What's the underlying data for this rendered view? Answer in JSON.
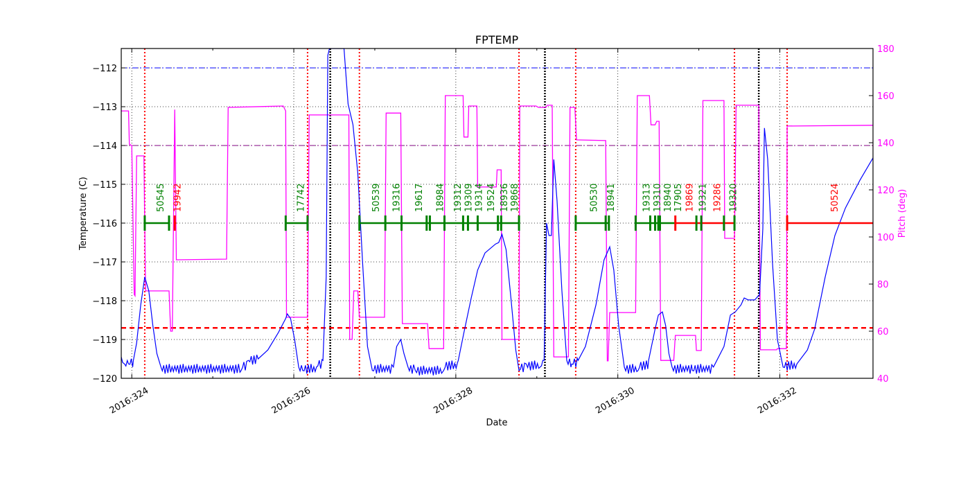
{
  "chart_data": {
    "type": "line",
    "title": "FPTEMP",
    "xlabel": "Date",
    "ylabel": "Temperature (C)",
    "y2label": "Pitch (deg)",
    "xlim": [
      323.87,
      333.15
    ],
    "ylim": [
      -120,
      -111.5
    ],
    "y2lim": [
      40,
      180
    ],
    "xticks": [
      324,
      326,
      328,
      330,
      332
    ],
    "xtick_labels": [
      "2016:324",
      "2016:326",
      "2016:328",
      "2016:330",
      "2016:332"
    ],
    "xminor": [
      325,
      327,
      329,
      331
    ],
    "yticks": [
      -120,
      -119,
      -118,
      -117,
      -116,
      -115,
      -114,
      -113,
      -112
    ],
    "y2ticks": [
      40,
      60,
      80,
      100,
      120,
      140,
      160,
      180
    ],
    "grid": true,
    "colors": {
      "temp": "#0000ff",
      "pitch": "#ff00ff",
      "accent_right_axis": "#ff00ff",
      "green": "#008000",
      "red": "#ff0000",
      "purple": "#800080"
    },
    "hlines": [
      {
        "y": -112.0,
        "color": "#0000ff",
        "style": "dashdot"
      },
      {
        "y": -114.0,
        "color": "#800080",
        "style": "dashdot"
      },
      {
        "y": -118.7,
        "color": "#ff0000",
        "style": "dashed"
      }
    ],
    "vlines_red": [
      324.16,
      326.17,
      326.81,
      328.78,
      329.48,
      331.44,
      332.09
    ],
    "vlines_black": [
      326.45,
      329.1,
      331.74
    ],
    "temperature": {
      "x": [
        323.87,
        323.91,
        323.96,
        324.02,
        324.06,
        324.11,
        324.16,
        324.21,
        324.26,
        324.31,
        324.36,
        325.35,
        325.44,
        325.56,
        325.68,
        325.81,
        325.9,
        325.92,
        325.96,
        326.01,
        326.06,
        326.11,
        326.28,
        326.36,
        326.4,
        326.42,
        326.44,
        326.62,
        326.67,
        326.73,
        326.79,
        326.85,
        326.91,
        326.97,
        327.23,
        327.27,
        327.32,
        327.36,
        327.41,
        327.5,
        327.85,
        328.03,
        328.1,
        328.19,
        328.27,
        328.36,
        328.49,
        328.53,
        328.57,
        328.62,
        328.68,
        328.74,
        328.78,
        328.87,
        329.04,
        329.09,
        329.12,
        329.15,
        329.18,
        329.21,
        329.25,
        329.31,
        329.37,
        329.43,
        329.51,
        329.6,
        329.73,
        329.83,
        329.9,
        329.95,
        330.01,
        330.08,
        330.25,
        330.38,
        330.46,
        330.5,
        330.55,
        330.59,
        330.63,
        330.67,
        330.92,
        331.18,
        331.31,
        331.39,
        331.45,
        331.52,
        331.56,
        331.61,
        331.69,
        331.75,
        331.79,
        331.81,
        331.85,
        331.91,
        331.97,
        332.04,
        332.21,
        332.34,
        332.43,
        332.56,
        332.68,
        332.81,
        332.99,
        333.15
      ],
      "y": [
        -119.45,
        -119.63,
        -119.63,
        -119.54,
        -119.09,
        -118.11,
        -117.39,
        -117.75,
        -118.64,
        -119.36,
        -119.71,
        -119.8,
        -119.54,
        -119.5,
        -119.27,
        -118.82,
        -118.46,
        -118.34,
        -118.46,
        -119.0,
        -119.71,
        -119.8,
        -119.71,
        -119.54,
        -117.39,
        -111.68,
        -111.5,
        -111.5,
        -112.93,
        -113.46,
        -114.71,
        -117.04,
        -119.18,
        -119.8,
        -119.71,
        -119.18,
        -119.0,
        -119.36,
        -119.71,
        -119.8,
        -119.8,
        -119.54,
        -118.82,
        -117.93,
        -117.21,
        -116.77,
        -116.54,
        -116.5,
        -116.29,
        -116.68,
        -117.93,
        -119.27,
        -119.8,
        -119.63,
        -119.71,
        -119.54,
        -116.0,
        -116.32,
        -116.32,
        -114.36,
        -115.43,
        -117.75,
        -119.54,
        -119.63,
        -119.54,
        -119.18,
        -118.11,
        -116.95,
        -116.61,
        -117.21,
        -118.64,
        -119.71,
        -119.8,
        -119.54,
        -118.73,
        -118.37,
        -118.29,
        -118.64,
        -119.36,
        -119.71,
        -119.8,
        -119.71,
        -119.18,
        -118.37,
        -118.29,
        -118.11,
        -117.93,
        -117.98,
        -117.98,
        -117.84,
        -116.14,
        -113.55,
        -114.36,
        -117.04,
        -119.0,
        -119.71,
        -119.63,
        -119.27,
        -118.73,
        -117.39,
        -116.32,
        -115.61,
        -114.89,
        -114.32
      ]
    },
    "pitch": {
      "x": [
        323.87,
        323.96,
        323.97,
        324.0,
        324.03,
        324.04,
        324.06,
        324.15,
        324.17,
        324.46,
        324.48,
        324.5,
        324.53,
        324.55,
        325.17,
        325.19,
        325.87,
        325.9,
        325.91,
        326.17,
        326.19,
        326.68,
        326.69,
        326.72,
        326.74,
        326.79,
        326.81,
        327.12,
        327.14,
        327.32,
        327.34,
        327.65,
        327.67,
        327.85,
        327.87,
        328.09,
        328.1,
        328.15,
        328.16,
        328.26,
        328.27,
        328.5,
        328.51,
        328.56,
        328.57,
        328.78,
        328.79,
        328.99,
        329.02,
        329.11,
        329.13,
        329.19,
        329.21,
        329.39,
        329.41,
        329.47,
        329.49,
        329.85,
        329.87,
        329.88,
        329.9,
        330.22,
        330.24,
        330.39,
        330.41,
        330.46,
        330.48,
        330.51,
        330.53,
        330.69,
        330.71,
        330.96,
        330.97,
        331.03,
        331.05,
        331.31,
        331.32,
        331.44,
        331.46,
        331.74,
        331.76,
        331.96,
        331.97,
        332.08,
        332.09,
        333.15
      ],
      "y": [
        153.5,
        153.5,
        139.4,
        138.8,
        75.6,
        75.0,
        134.4,
        134.4,
        77.1,
        77.1,
        60.0,
        60.0,
        154.1,
        90.3,
        90.6,
        155.0,
        155.6,
        153.5,
        65.9,
        65.9,
        151.8,
        151.8,
        56.5,
        56.5,
        77.1,
        77.1,
        65.9,
        65.9,
        152.6,
        152.6,
        63.2,
        63.2,
        52.6,
        52.6,
        160.0,
        160.0,
        142.4,
        142.4,
        155.6,
        155.6,
        121.2,
        121.2,
        128.5,
        128.5,
        56.5,
        56.5,
        155.6,
        155.6,
        155.0,
        155.0,
        155.9,
        155.9,
        49.1,
        49.1,
        155.0,
        155.0,
        141.2,
        140.9,
        47.4,
        47.4,
        67.9,
        67.9,
        160.0,
        160.0,
        147.6,
        147.6,
        149.1,
        149.1,
        47.6,
        47.6,
        58.2,
        58.2,
        51.8,
        51.8,
        157.9,
        157.9,
        99.4,
        99.4,
        155.9,
        155.9,
        52.1,
        52.1,
        52.6,
        52.6,
        147.1,
        147.4
      ]
    },
    "obs_level": -116,
    "obs_segments": [
      {
        "start": 324.16,
        "end": 324.46,
        "color": "#008000"
      },
      {
        "start": 324.53,
        "end": 324.55,
        "color": "#ff0000"
      },
      {
        "start": 325.9,
        "end": 326.17,
        "color": "#008000"
      },
      {
        "start": 326.81,
        "end": 328.78,
        "color": "#008000"
      },
      {
        "start": 329.48,
        "end": 329.9,
        "color": "#008000"
      },
      {
        "start": 330.22,
        "end": 330.71,
        "color": "#008000"
      },
      {
        "start": 330.71,
        "end": 331.44,
        "color": "#ff0000"
      },
      {
        "start": 332.09,
        "end": 333.15,
        "color": "#ff0000"
      }
    ],
    "obs_ticks": [
      {
        "x": 324.16,
        "c": "#008000"
      },
      {
        "x": 324.46,
        "c": "#008000"
      },
      {
        "x": 324.53,
        "c": "#ff0000"
      },
      {
        "x": 325.9,
        "c": "#008000"
      },
      {
        "x": 326.17,
        "c": "#008000"
      },
      {
        "x": 326.81,
        "c": "#008000"
      },
      {
        "x": 327.13,
        "c": "#008000"
      },
      {
        "x": 327.33,
        "c": "#008000"
      },
      {
        "x": 327.64,
        "c": "#008000"
      },
      {
        "x": 327.68,
        "c": "#008000"
      },
      {
        "x": 327.86,
        "c": "#008000"
      },
      {
        "x": 328.09,
        "c": "#008000"
      },
      {
        "x": 328.15,
        "c": "#008000"
      },
      {
        "x": 328.27,
        "c": "#008000"
      },
      {
        "x": 328.52,
        "c": "#008000"
      },
      {
        "x": 328.56,
        "c": "#008000"
      },
      {
        "x": 328.78,
        "c": "#008000"
      },
      {
        "x": 329.48,
        "c": "#008000"
      },
      {
        "x": 329.85,
        "c": "#008000"
      },
      {
        "x": 329.89,
        "c": "#008000"
      },
      {
        "x": 330.22,
        "c": "#008000"
      },
      {
        "x": 330.4,
        "c": "#008000"
      },
      {
        "x": 330.46,
        "c": "#008000"
      },
      {
        "x": 330.5,
        "c": "#008000"
      },
      {
        "x": 330.52,
        "c": "#008000"
      },
      {
        "x": 330.71,
        "c": "#ff0000"
      },
      {
        "x": 330.97,
        "c": "#008000"
      },
      {
        "x": 331.03,
        "c": "#008000"
      },
      {
        "x": 331.31,
        "c": "#008000"
      },
      {
        "x": 331.44,
        "c": "#008000"
      },
      {
        "x": 332.09,
        "c": "#ff0000"
      }
    ],
    "obs_labels": [
      {
        "text": "50545",
        "x": 324.35,
        "c": "#008000"
      },
      {
        "text": "19942",
        "x": 324.56,
        "c": "#ff0000"
      },
      {
        "text": "17742",
        "x": 326.08,
        "c": "#008000"
      },
      {
        "text": "50539",
        "x": 327.01,
        "c": "#008000"
      },
      {
        "text": "19316",
        "x": 327.26,
        "c": "#008000"
      },
      {
        "text": "19617",
        "x": 327.54,
        "c": "#008000"
      },
      {
        "text": "18984",
        "x": 327.8,
        "c": "#008000"
      },
      {
        "text": "19312",
        "x": 328.02,
        "c": "#008000"
      },
      {
        "text": "19309",
        "x": 328.15,
        "c": "#008000"
      },
      {
        "text": "19314",
        "x": 328.26,
        "c": "#008000"
      },
      {
        "text": "19524",
        "x": 328.43,
        "c": "#008000"
      },
      {
        "text": "18936",
        "x": 328.59,
        "c": "#008000"
      },
      {
        "text": "19868",
        "x": 328.72,
        "c": "#008000"
      },
      {
        "text": "50530",
        "x": 329.7,
        "c": "#008000"
      },
      {
        "text": "18941",
        "x": 329.91,
        "c": "#008000"
      },
      {
        "text": "19313",
        "x": 330.35,
        "c": "#008000"
      },
      {
        "text": "19310",
        "x": 330.48,
        "c": "#008000"
      },
      {
        "text": "18940",
        "x": 330.54,
        "c": "#008000"
      },
      {
        "text": "17905",
        "x": 330.66,
        "c": "#008000"
      },
      {
        "text": "19869",
        "x": 330.88,
        "c": "#ff0000"
      },
      {
        "text": "19321",
        "x": 331.04,
        "c": "#008000"
      },
      {
        "text": "19286",
        "x": 331.22,
        "c": "#ff0000"
      },
      {
        "text": "19320",
        "x": 331.42,
        "c": "#008000"
      },
      {
        "text": "50524",
        "x": 332.67,
        "c": "#ff0000"
      }
    ]
  }
}
